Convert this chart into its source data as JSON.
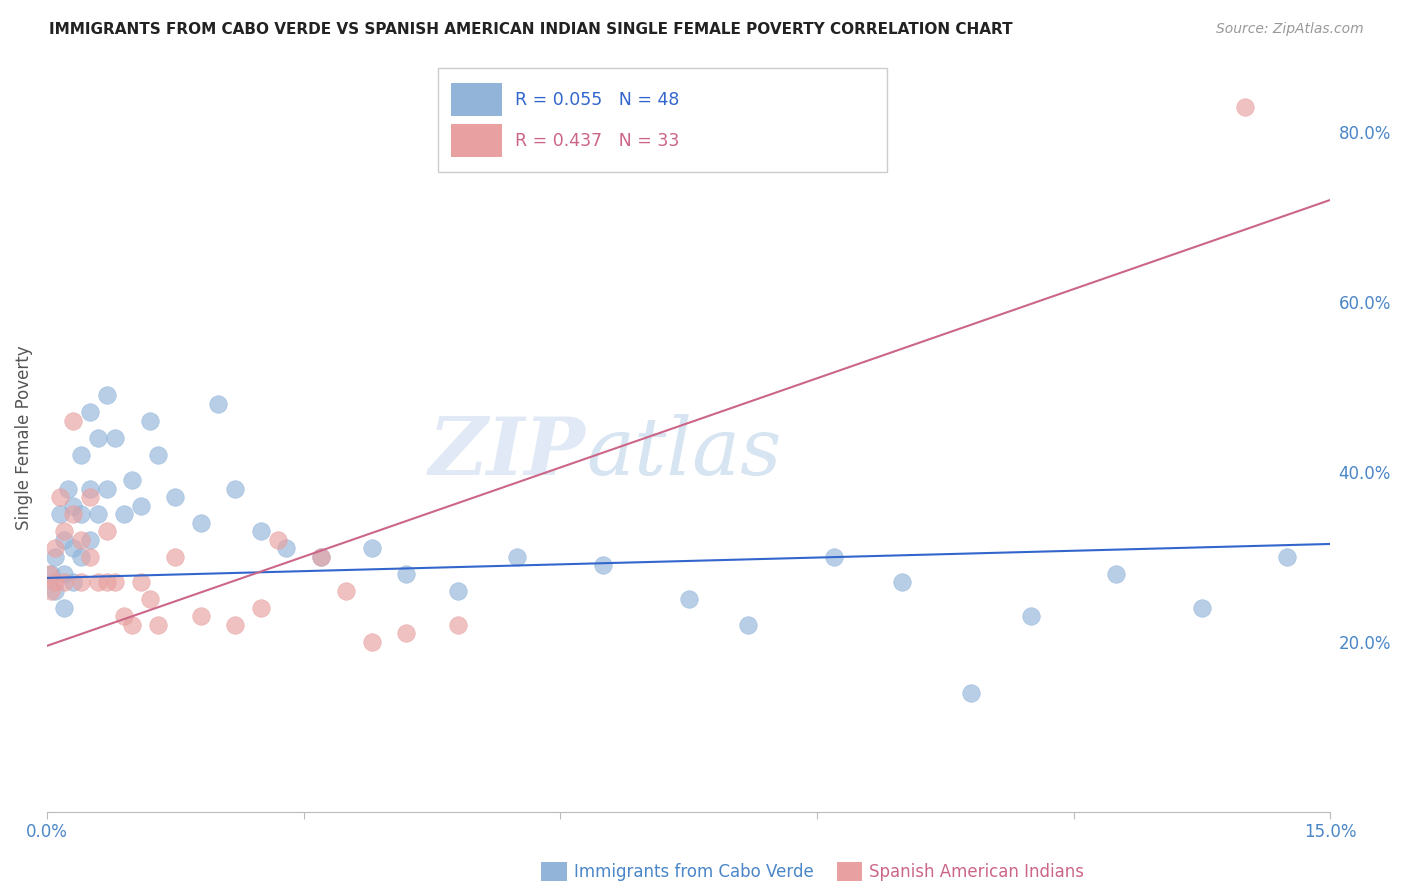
{
  "title": "IMMIGRANTS FROM CABO VERDE VS SPANISH AMERICAN INDIAN SINGLE FEMALE POVERTY CORRELATION CHART",
  "source": "Source: ZipAtlas.com",
  "ylabel": "Single Female Poverty",
  "xlabel_blue": "Immigrants from Cabo Verde",
  "xlabel_pink": "Spanish American Indians",
  "legend_blue_r": "0.055",
  "legend_blue_n": "48",
  "legend_pink_r": "0.437",
  "legend_pink_n": "33",
  "xlim": [
    0.0,
    0.15
  ],
  "ylim": [
    0.0,
    0.88
  ],
  "color_blue": "#92b4d9",
  "color_pink": "#e8a0a0",
  "color_blue_line": "#3366cc",
  "color_pink_line": "#cc6688",
  "watermark_zip": "ZIP",
  "watermark_atlas": "atlas",
  "blue_x": [
    0.0005,
    0.001,
    0.001,
    0.0015,
    0.002,
    0.002,
    0.002,
    0.0025,
    0.003,
    0.003,
    0.003,
    0.004,
    0.004,
    0.004,
    0.005,
    0.005,
    0.005,
    0.006,
    0.006,
    0.007,
    0.007,
    0.008,
    0.009,
    0.01,
    0.011,
    0.012,
    0.013,
    0.015,
    0.018,
    0.02,
    0.022,
    0.025,
    0.028,
    0.032,
    0.038,
    0.042,
    0.048,
    0.055,
    0.065,
    0.075,
    0.082,
    0.092,
    0.1,
    0.108,
    0.115,
    0.125,
    0.135,
    0.145
  ],
  "blue_y": [
    0.28,
    0.3,
    0.26,
    0.35,
    0.32,
    0.28,
    0.24,
    0.38,
    0.36,
    0.31,
    0.27,
    0.42,
    0.35,
    0.3,
    0.47,
    0.38,
    0.32,
    0.44,
    0.35,
    0.49,
    0.38,
    0.44,
    0.35,
    0.39,
    0.36,
    0.46,
    0.42,
    0.37,
    0.34,
    0.48,
    0.38,
    0.33,
    0.31,
    0.3,
    0.31,
    0.28,
    0.26,
    0.3,
    0.29,
    0.25,
    0.22,
    0.3,
    0.27,
    0.14,
    0.23,
    0.28,
    0.24,
    0.3
  ],
  "pink_x": [
    0.0003,
    0.0005,
    0.001,
    0.001,
    0.0015,
    0.002,
    0.002,
    0.003,
    0.003,
    0.004,
    0.004,
    0.005,
    0.005,
    0.006,
    0.007,
    0.007,
    0.008,
    0.009,
    0.01,
    0.011,
    0.012,
    0.013,
    0.015,
    0.018,
    0.022,
    0.025,
    0.027,
    0.032,
    0.035,
    0.038,
    0.042,
    0.048,
    0.14
  ],
  "pink_y": [
    0.28,
    0.26,
    0.31,
    0.27,
    0.37,
    0.33,
    0.27,
    0.46,
    0.35,
    0.32,
    0.27,
    0.37,
    0.3,
    0.27,
    0.33,
    0.27,
    0.27,
    0.23,
    0.22,
    0.27,
    0.25,
    0.22,
    0.3,
    0.23,
    0.22,
    0.24,
    0.32,
    0.3,
    0.26,
    0.2,
    0.21,
    0.22,
    0.83
  ],
  "blue_line_x": [
    0.0,
    0.15
  ],
  "blue_line_y": [
    0.275,
    0.315
  ],
  "pink_line_x": [
    0.0,
    0.15
  ],
  "pink_line_y": [
    0.195,
    0.72
  ],
  "background_color": "#ffffff",
  "grid_color": "#cccccc",
  "axis_label_color": "#4a86c8",
  "title_color": "#222222"
}
